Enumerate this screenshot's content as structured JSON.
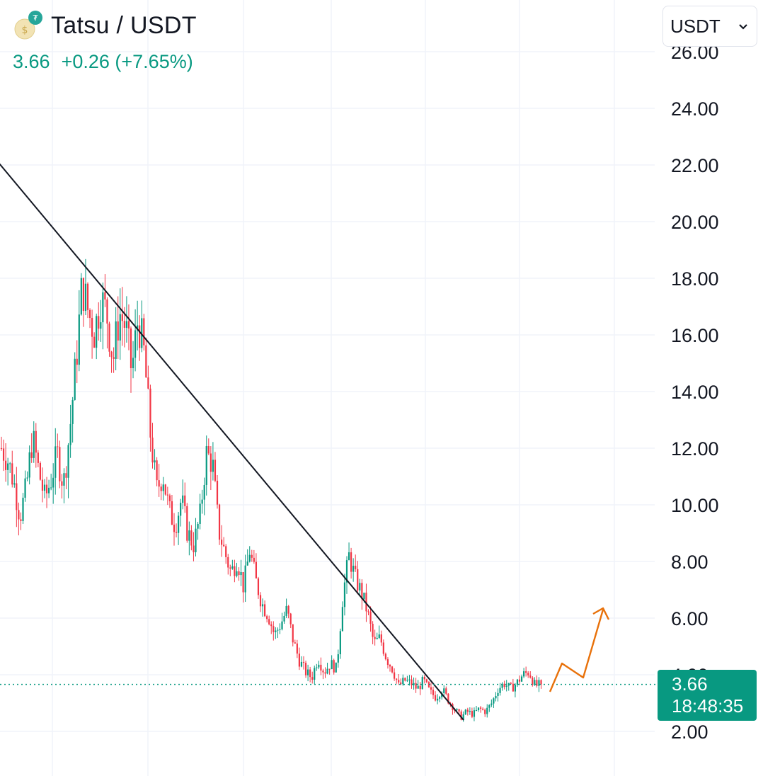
{
  "header": {
    "pair": "Tatsu / USDT",
    "price": "3.66",
    "change": "+0.26",
    "change_pct": "(+7.65%)",
    "logo_icon": "tatsu-coin-icon"
  },
  "currency_select": {
    "value": "USDT",
    "icon": "chevron-down-icon"
  },
  "price_tag": {
    "price": "3.66",
    "countdown": "18:48:35",
    "color": "#089981"
  },
  "colors": {
    "up": "#089981",
    "down": "#f23645",
    "trendline": "#131722",
    "projection": "#e8710a"
  },
  "chart_data": {
    "type": "candlestick",
    "y_axis": {
      "position": "right",
      "ticks": [
        2.0,
        4.0,
        6.0,
        8.0,
        10.0,
        12.0,
        14.0,
        16.0,
        18.0,
        20.0,
        22.0,
        24.0,
        26.0
      ],
      "tick_labels": [
        "2.00",
        "4.00",
        "6.00",
        "8.00",
        "10.00",
        "12.00",
        "14.00",
        "16.00",
        "18.00",
        "20.00",
        "22.00",
        "24.00",
        "26.00"
      ],
      "ylim": [
        0.5,
        26.2
      ]
    },
    "grid": true,
    "last_price": 3.66,
    "price_path": [
      12.0,
      11.6,
      10.8,
      9.6,
      10.6,
      12.4,
      11.2,
      10.2,
      10.9,
      11.8,
      10.7,
      12.6,
      15.0,
      17.8,
      16.8,
      16.1,
      17.3,
      16.7,
      15.1,
      16.8,
      16.3,
      14.7,
      16.6,
      15.3,
      12.5,
      10.5,
      11.1,
      9.8,
      9.3,
      10.2,
      9.0,
      8.6,
      9.6,
      11.8,
      11.5,
      9.1,
      8.3,
      7.6,
      8.1,
      7.1,
      8.4,
      7.3,
      6.5,
      6.1,
      5.4,
      5.8,
      6.3,
      5.2,
      4.5,
      4.1,
      3.9,
      4.6,
      4.1,
      4.4,
      4.2,
      6.8,
      8.2,
      7.4,
      6.9,
      6.2,
      5.1,
      5.3,
      4.6,
      4.2,
      3.6,
      3.8,
      3.7,
      3.5,
      3.8,
      3.4,
      3.2,
      3.5,
      3.1,
      2.8,
      2.5,
      2.7,
      2.6,
      2.8,
      2.7,
      3.0,
      3.5,
      3.7,
      3.5,
      3.7,
      4.0,
      4.1,
      3.6,
      3.66
    ],
    "trendline": {
      "from": {
        "index": 0,
        "price": 22.0
      },
      "to": {
        "index": 87,
        "price": 2.4
      }
    },
    "projection": [
      3.4,
      4.4,
      3.9,
      6.3
    ],
    "projection_arrow": true
  }
}
